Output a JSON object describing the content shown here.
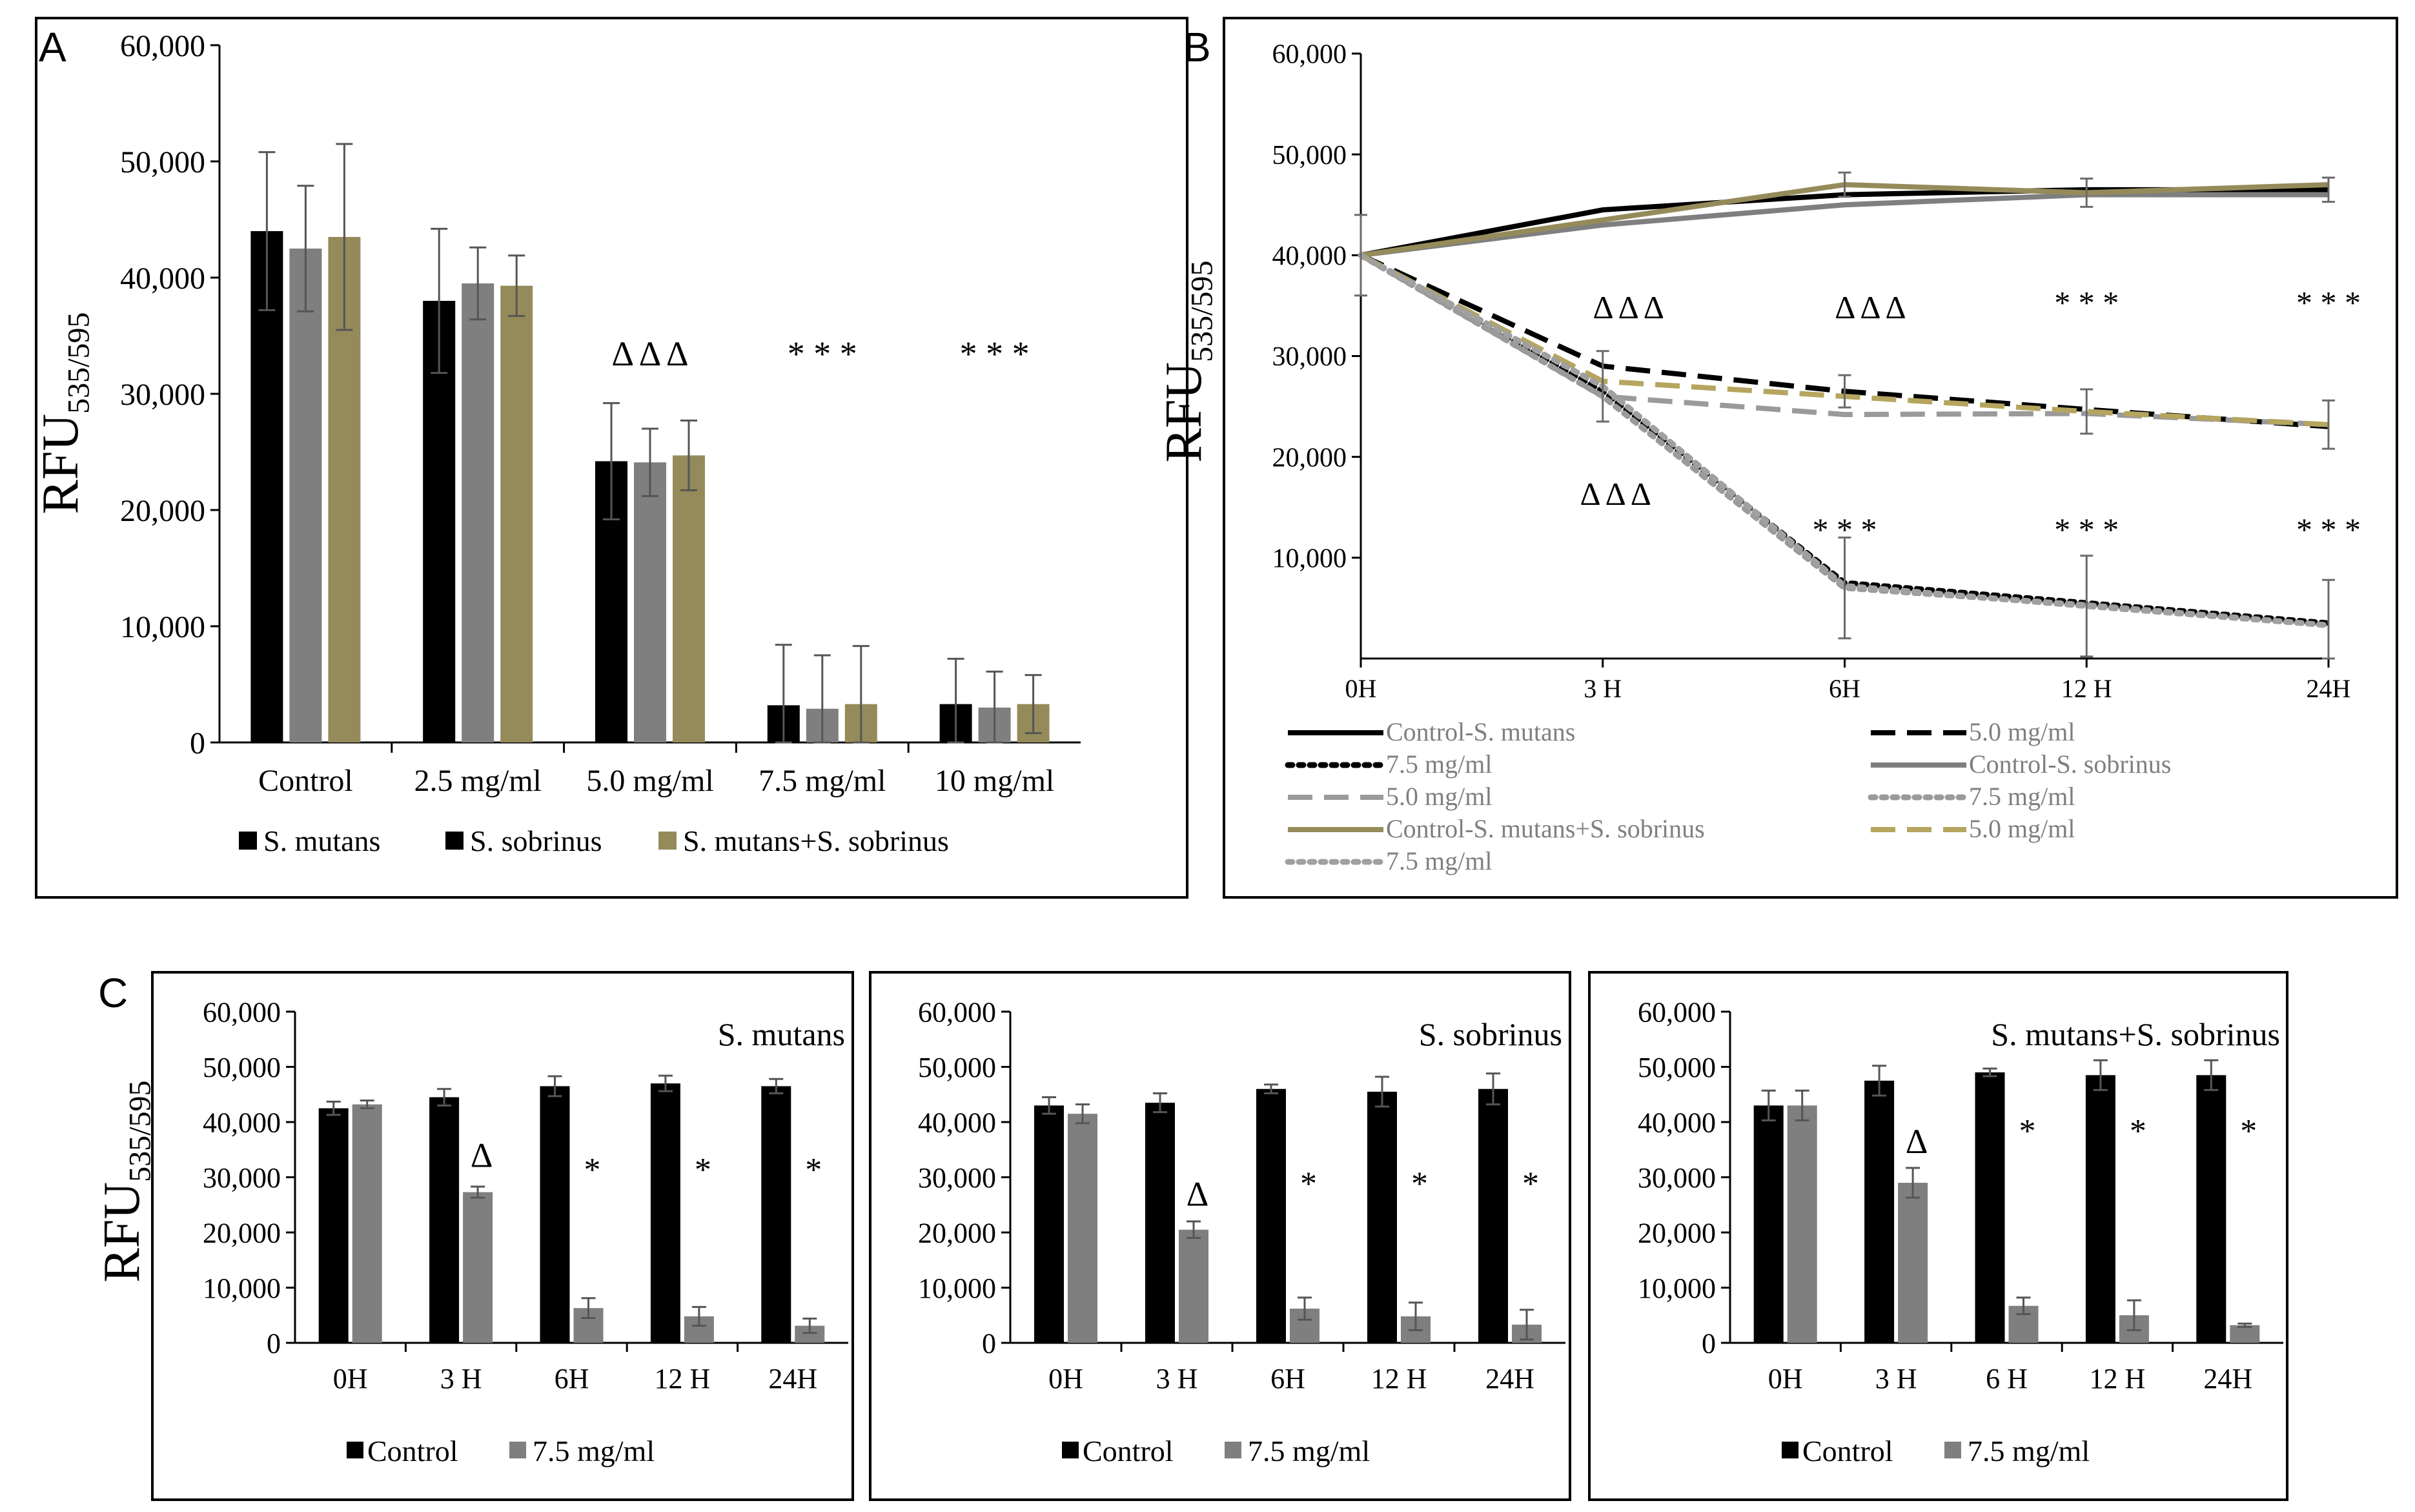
{
  "figure": {
    "panel_labels": [
      "A",
      "B",
      "C"
    ]
  },
  "colors": {
    "mutans": "#000000",
    "sobrinus": "#7f7f7f",
    "mix": "#958b5a",
    "sobrinus_bar_A": "#000000",
    "control_bar": "#000000",
    "treated_bar": "#7f7f7f"
  },
  "chart_data": [
    {
      "id": "A",
      "type": "bar",
      "title": "",
      "ylabel": "RFU",
      "ylabel_sub": "535/595",
      "ylim": [
        0,
        60000
      ],
      "yticks": [
        0,
        10000,
        20000,
        30000,
        40000,
        50000,
        60000
      ],
      "ytick_labels": [
        "0",
        "10,000",
        "20,000",
        "30,000",
        "40,000",
        "50,000",
        "60,000"
      ],
      "categories": [
        "Control",
        "2.5 mg/ml",
        "5.0 mg/ml",
        "7.5 mg/ml",
        "10 mg/ml"
      ],
      "series": [
        {
          "name": "S. mutans",
          "values": [
            44000,
            38000,
            24200,
            3200,
            3300
          ],
          "errors": [
            6800,
            6200,
            5000,
            5200,
            3900
          ],
          "color": "#000000"
        },
        {
          "name": "S. sobrinus",
          "values": [
            42500,
            39500,
            24100,
            2900,
            3000
          ],
          "errors": [
            5400,
            3100,
            2900,
            4600,
            3100
          ],
          "color": "#7f7f7f"
        },
        {
          "name": "S. mutans+S. sobrinus",
          "values": [
            43500,
            39300,
            24700,
            3300,
            3300
          ],
          "errors": [
            8000,
            2600,
            3000,
            5000,
            2500
          ],
          "color": "#958b5a"
        }
      ],
      "legend_colors": [
        "#000000",
        "#000000",
        "#958b5a"
      ],
      "annotations": [
        {
          "category_index": 2,
          "text": "Δ Δ Δ",
          "y": 33000
        },
        {
          "category_index": 3,
          "text": "* * *",
          "y": 33000
        },
        {
          "category_index": 4,
          "text": "* * *",
          "y": 33000
        }
      ],
      "legend_position": "bottom"
    },
    {
      "id": "B",
      "type": "line",
      "title": "",
      "ylabel": "RFU",
      "ylabel_sub": "535/595",
      "ylim": [
        0,
        60000
      ],
      "yticks": [
        10000,
        20000,
        30000,
        40000,
        50000,
        60000
      ],
      "ytick_labels": [
        "10,000",
        "20,000",
        "30,000",
        "40,000",
        "50,000",
        "60,000"
      ],
      "x": [
        "0H",
        "3 H",
        "6H",
        "12 H",
        "24H"
      ],
      "series": [
        {
          "name": "Control-S. mutans",
          "values": [
            40000,
            44500,
            46000,
            46500,
            46500
          ],
          "color": "#000000",
          "dash": "solid",
          "legend_color": "#7f7f7f"
        },
        {
          "name": "5.0 mg/ml",
          "values": [
            40000,
            29000,
            26500,
            24700,
            23000
          ],
          "color": "#000000",
          "dash": "dashed",
          "legend_color": "#7f7f7f"
        },
        {
          "name": "7.5 mg/ml",
          "values": [
            40000,
            26500,
            7500,
            5500,
            3500
          ],
          "color": "#000000",
          "dash": "dotted",
          "legend_color": "#7f7f7f"
        },
        {
          "name": "Control-S. sobrinus",
          "values": [
            40000,
            43000,
            45000,
            46000,
            46000
          ],
          "color": "#7f7f7f",
          "dash": "solid",
          "legend_color": "#7f7f7f"
        },
        {
          "name": "5.0 mg/ml",
          "values": [
            40000,
            26000,
            24200,
            24300,
            23200
          ],
          "color": "#9a9a9a",
          "dash": "dashed",
          "legend_color": "#7f7f7f"
        },
        {
          "name": "7.5 mg/ml",
          "values": [
            40000,
            26000,
            7000,
            5300,
            3300
          ],
          "color": "#9a9a9a",
          "dash": "dotted",
          "legend_color": "#7f7f7f"
        },
        {
          "name": "Control-S. mutans+S. sobrinus",
          "values": [
            40000,
            43500,
            47000,
            46200,
            47000
          ],
          "color": "#958b5a",
          "dash": "solid",
          "legend_color": "#7f7f7f"
        },
        {
          "name": "5.0 mg/ml",
          "values": [
            40000,
            27500,
            26000,
            24500,
            23200
          ],
          "color": "#b5a55e",
          "dash": "dashed",
          "legend_color": "#7f7f7f"
        },
        {
          "name": "7.5 mg/ml",
          "values": [
            40000,
            27000,
            7200,
            5200,
            3300
          ],
          "color": "#a0a0a0",
          "dash": "dotted",
          "legend_color": "#7f7f7f"
        }
      ],
      "error_bars": [
        {
          "x_index": 0,
          "center": 40000,
          "error": 4000
        },
        {
          "x_index": 1,
          "center": 27000,
          "error": 3500
        },
        {
          "x_index": 2,
          "center": 7000,
          "error": 5000
        },
        {
          "x_index": 2,
          "center": 26500,
          "error": 1600
        },
        {
          "x_index": 2,
          "center": 47000,
          "error": 1200
        },
        {
          "x_index": 3,
          "center": 5200,
          "error": 5000
        },
        {
          "x_index": 3,
          "center": 24500,
          "error": 2200
        },
        {
          "x_index": 3,
          "center": 46200,
          "error": 1400
        },
        {
          "x_index": 4,
          "center": 3300,
          "error": 4500
        },
        {
          "x_index": 4,
          "center": 23200,
          "error": 2400
        },
        {
          "x_index": 4,
          "center": 46500,
          "error": 1200
        }
      ],
      "annotations": [
        {
          "x_index": 1,
          "text": "Δ Δ Δ",
          "y": 34500,
          "offset": 1
        },
        {
          "x_index": 2,
          "text": "Δ Δ Δ",
          "y": 34500,
          "offset": 1
        },
        {
          "x_index": 3,
          "text": "* * *",
          "y": 35000,
          "offset": 0
        },
        {
          "x_index": 4,
          "text": "* * *",
          "y": 35000,
          "offset": 0
        },
        {
          "x_index": 1,
          "text": "Δ Δ Δ",
          "y": 16000,
          "offset": 0.5
        },
        {
          "x_index": 2,
          "text": "* * *",
          "y": 12500,
          "offset": 0
        },
        {
          "x_index": 3,
          "text": "* * *",
          "y": 12500,
          "offset": 0
        },
        {
          "x_index": 4,
          "text": "* * *",
          "y": 12500,
          "offset": 0
        }
      ],
      "legend_position": "bottom"
    },
    {
      "id": "C1",
      "type": "bar",
      "title": "S. mutans",
      "ylabel": "RFU",
      "ylabel_sub": "535/595",
      "ylim": [
        0,
        60000
      ],
      "yticks": [
        0,
        10000,
        20000,
        30000,
        40000,
        50000,
        60000
      ],
      "ytick_labels": [
        "0",
        "10,000",
        "20,000",
        "30,000",
        "40,000",
        "50,000",
        "60,000"
      ],
      "categories": [
        "0H",
        "3 H",
        "6H",
        "12 H",
        "24H"
      ],
      "series": [
        {
          "name": "Control",
          "values": [
            42500,
            44500,
            46500,
            47000,
            46500
          ],
          "errors": [
            1200,
            1500,
            1800,
            1400,
            1300
          ],
          "color": "#000000"
        },
        {
          "name": "7.5 mg/ml",
          "values": [
            43200,
            27300,
            6300,
            4800,
            3100
          ],
          "errors": [
            700,
            1000,
            1800,
            1700,
            1300
          ],
          "color": "#7f7f7f"
        }
      ],
      "annotations": [
        {
          "category_index": 1,
          "text": "Δ",
          "y": 33500
        },
        {
          "category_index": 2,
          "text": "*",
          "y": 31000
        },
        {
          "category_index": 3,
          "text": "*",
          "y": 31000
        },
        {
          "category_index": 4,
          "text": "*",
          "y": 31000
        }
      ],
      "legend_position": "bottom"
    },
    {
      "id": "C2",
      "type": "bar",
      "title": "S. sobrinus",
      "ylabel": "",
      "ylabel_sub": "",
      "ylim": [
        0,
        60000
      ],
      "yticks": [
        0,
        10000,
        20000,
        30000,
        40000,
        50000,
        60000
      ],
      "ytick_labels": [
        "0",
        "10,000",
        "20,000",
        "30,000",
        "40,000",
        "50,000",
        "60,000"
      ],
      "categories": [
        "0H",
        "3 H",
        "6H",
        "12 H",
        "24H"
      ],
      "series": [
        {
          "name": "Control",
          "values": [
            43000,
            43500,
            46000,
            45500,
            46000
          ],
          "errors": [
            1500,
            1700,
            800,
            2700,
            2800
          ],
          "color": "#000000"
        },
        {
          "name": "7.5 mg/ml",
          "values": [
            41500,
            20500,
            6200,
            4800,
            3300
          ],
          "errors": [
            1700,
            1500,
            2000,
            2500,
            2700
          ],
          "color": "#7f7f7f"
        }
      ],
      "annotations": [
        {
          "category_index": 1,
          "text": "Δ",
          "y": 26500
        },
        {
          "category_index": 2,
          "text": "*",
          "y": 28500
        },
        {
          "category_index": 3,
          "text": "*",
          "y": 28500
        },
        {
          "category_index": 4,
          "text": "*",
          "y": 28500
        }
      ],
      "legend_position": "bottom"
    },
    {
      "id": "C3",
      "type": "bar",
      "title": "S. mutans+S. sobrinus",
      "ylabel": "",
      "ylabel_sub": "",
      "ylim": [
        0,
        60000
      ],
      "yticks": [
        0,
        10000,
        20000,
        30000,
        40000,
        50000,
        60000
      ],
      "ytick_labels": [
        "0",
        "10,000",
        "20,000",
        "30,000",
        "40,000",
        "50,000",
        "60,000"
      ],
      "categories": [
        "0H",
        "3 H",
        "6 H",
        "12 H",
        "24H"
      ],
      "series": [
        {
          "name": "Control",
          "values": [
            43000,
            47500,
            49000,
            48500,
            48500
          ],
          "errors": [
            2700,
            2700,
            700,
            2700,
            2700
          ],
          "color": "#000000"
        },
        {
          "name": "7.5 mg/ml",
          "values": [
            43000,
            29000,
            6700,
            5000,
            3200
          ],
          "errors": [
            2700,
            2700,
            1500,
            2700,
            300
          ],
          "color": "#7f7f7f"
        }
      ],
      "annotations": [
        {
          "category_index": 1,
          "text": "Δ",
          "y": 36000
        },
        {
          "category_index": 2,
          "text": "*",
          "y": 38000
        },
        {
          "category_index": 3,
          "text": "*",
          "y": 38000
        },
        {
          "category_index": 4,
          "text": "*",
          "y": 38000
        }
      ],
      "legend_position": "bottom"
    }
  ]
}
